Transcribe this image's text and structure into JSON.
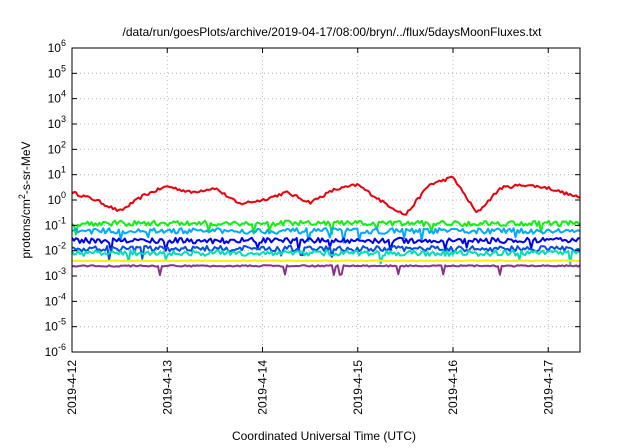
{
  "chart_data": {
    "type": "line",
    "title": "/data/run/goesPlots/archive/2019-04-17/08:00/bryn/../flux/5daysMoonFluxes.txt",
    "xlabel": "Coordinated Universal Time (UTC)",
    "ylabel": {
      "pre": "protons/cm",
      "sup": "2",
      "post": "-s-sr-MeV"
    },
    "yscale": "log",
    "ylim": [
      1e-06,
      1000000.0
    ],
    "y_ticks": [
      {
        "base": "10",
        "exp": "-6"
      },
      {
        "base": "10",
        "exp": "-5"
      },
      {
        "base": "10",
        "exp": "-4"
      },
      {
        "base": "10",
        "exp": "-3"
      },
      {
        "base": "10",
        "exp": "-2"
      },
      {
        "base": "10",
        "exp": "-1"
      },
      {
        "base": "10",
        "exp": "0"
      },
      {
        "base": "10",
        "exp": "1"
      },
      {
        "base": "10",
        "exp": "2"
      },
      {
        "base": "10",
        "exp": "3"
      },
      {
        "base": "10",
        "exp": "4"
      },
      {
        "base": "10",
        "exp": "5"
      },
      {
        "base": "10",
        "exp": "6"
      }
    ],
    "x_ticks": [
      "2019-4-12",
      "2019-4-13",
      "2019-4-14",
      "2019-4-15",
      "2019-4-16",
      "2019-4-17"
    ],
    "xlim": [
      "2019-04-12T00:00",
      "2019-04-17T08:00"
    ],
    "grid": true,
    "series": [
      {
        "color": "#e8000b",
        "values_at_day": {
          "2019-04-12T00:00": 2.0,
          "2019-04-12T06:00": 1.0,
          "2019-04-12T12:00": 0.35,
          "2019-04-12T18:00": 1.5,
          "2019-04-13T00:00": 3.5,
          "2019-04-13T06:00": 2.0,
          "2019-04-13T12:00": 3.0,
          "2019-04-13T18:00": 0.7,
          "2019-04-14T00:00": 1.0,
          "2019-04-14T06:00": 2.0,
          "2019-04-14T12:00": 0.8,
          "2019-04-14T18:00": 2.5,
          "2019-04-15T00:00": 4.0,
          "2019-04-15T06:00": 0.9,
          "2019-04-15T12:00": 0.25,
          "2019-04-15T18:00": 4.0,
          "2019-04-16T00:00": 8.0,
          "2019-04-16T06:00": 0.3,
          "2019-04-16T12:00": 3.0,
          "2019-04-16T18:00": 4.0,
          "2019-04-17T00:00": 3.0,
          "2019-04-17T08:00": 1.2
        }
      },
      {
        "color": "#11ee11",
        "level": 0.12
      },
      {
        "color": "#00aaff",
        "level": 0.06
      },
      {
        "color": "#0000ee",
        "level": 0.025
      },
      {
        "color": "#0b4fd8",
        "level": 0.012
      },
      {
        "color": "#00ddbb",
        "level": 0.008
      },
      {
        "color": "#ffee00",
        "level": 0.004
      },
      {
        "color": "#883388",
        "level": 0.0025
      }
    ]
  }
}
